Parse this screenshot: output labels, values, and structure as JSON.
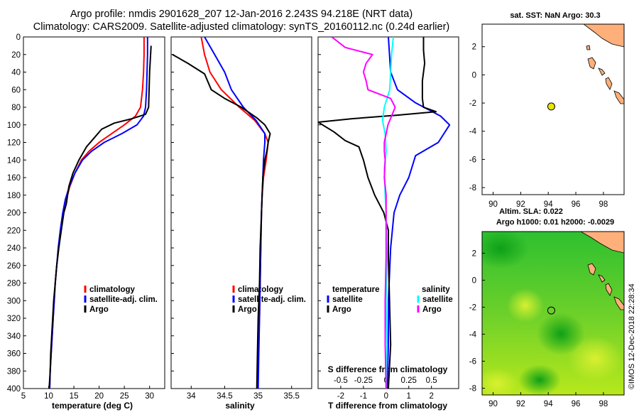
{
  "figure": {
    "title_line1": "Argo profile: nmdis 2901628_207 12-Jan-2016 2.243S 94.218E (NRT data)",
    "title_line2": "Climatology: CARS2009. Satellite-adjusted climatology: synTS_20160112.nc (0.24d earlier)",
    "stamp": "©IMOS 12-Dec-2018 22:28:34",
    "colors": {
      "climatology": "#ff0000",
      "satellite": "#0000ff",
      "argo": "#000000",
      "salinity_climatology": "#ff00ff",
      "salinity_satellite": "#00ffff",
      "land": "#ffb07a",
      "float": "#e6e600"
    }
  },
  "chart_data": [
    {
      "type": "line",
      "id": "temperature",
      "xlabel": "temperature (deg C)",
      "ylabel": "",
      "xlim": [
        5,
        33
      ],
      "ylim": [
        400,
        0
      ],
      "xticks": [
        5,
        10,
        15,
        20,
        25,
        30
      ],
      "yticks": [
        0,
        20,
        40,
        60,
        80,
        100,
        120,
        140,
        160,
        180,
        200,
        220,
        240,
        260,
        280,
        300,
        320,
        340,
        360,
        380,
        400
      ],
      "legend": [
        "climatology",
        "satellite-adj. clim.",
        "Argo"
      ],
      "series": [
        {
          "name": "climatology",
          "points": [
            [
              28.9,
              0
            ],
            [
              28.9,
              20
            ],
            [
              28.8,
              40
            ],
            [
              28.6,
              60
            ],
            [
              28.2,
              80
            ],
            [
              27.2,
              90
            ],
            [
              25,
              100
            ],
            [
              22.5,
              110
            ],
            [
              20,
              120
            ],
            [
              18,
              130
            ],
            [
              16.5,
              140
            ],
            [
              15.2,
              155
            ],
            [
              14.2,
              170
            ],
            [
              13.5,
              185
            ],
            [
              13,
              200
            ],
            [
              12.4,
              220
            ],
            [
              12,
              240
            ],
            [
              11.6,
              260
            ],
            [
              11.3,
              280
            ],
            [
              11.1,
              300
            ],
            [
              10.9,
              320
            ],
            [
              10.7,
              340
            ],
            [
              10.5,
              360
            ],
            [
              10.3,
              380
            ],
            [
              10.2,
              400
            ]
          ]
        },
        {
          "name": "satellite-adj. clim.",
          "points": [
            [
              29.6,
              0
            ],
            [
              29.6,
              20
            ],
            [
              29.5,
              40
            ],
            [
              29.4,
              60
            ],
            [
              29.2,
              80
            ],
            [
              28.8,
              90
            ],
            [
              27.5,
              100
            ],
            [
              24.5,
              110
            ],
            [
              21,
              120
            ],
            [
              18.5,
              130
            ],
            [
              16.7,
              140
            ],
            [
              15.2,
              155
            ],
            [
              14.1,
              170
            ],
            [
              13.3,
              185
            ],
            [
              12.8,
              200
            ],
            [
              12.3,
              220
            ],
            [
              11.9,
              240
            ],
            [
              11.6,
              260
            ],
            [
              11.3,
              280
            ],
            [
              11.1,
              300
            ],
            [
              10.9,
              320
            ],
            [
              10.7,
              340
            ],
            [
              10.5,
              360
            ],
            [
              10.3,
              380
            ],
            [
              10.2,
              400
            ]
          ]
        },
        {
          "name": "Argo",
          "points": [
            [
              30.3,
              10
            ],
            [
              30.2,
              20
            ],
            [
              30,
              40
            ],
            [
              29.9,
              60
            ],
            [
              29.8,
              80
            ],
            [
              29.2,
              88
            ],
            [
              26.5,
              93
            ],
            [
              23,
              98
            ],
            [
              20.5,
              105
            ],
            [
              19,
              115
            ],
            [
              17.5,
              125
            ],
            [
              16,
              140
            ],
            [
              14.8,
              155
            ],
            [
              14,
              170
            ],
            [
              13.5,
              190
            ],
            [
              13,
              200
            ],
            [
              12.5,
              220
            ],
            [
              12,
              240
            ],
            [
              11.6,
              260
            ],
            [
              11.3,
              280
            ],
            [
              11,
              300
            ],
            [
              10.8,
              320
            ],
            [
              10.6,
              340
            ],
            [
              10.4,
              360
            ],
            [
              10.3,
              380
            ],
            [
              10.1,
              400
            ]
          ]
        }
      ]
    },
    {
      "type": "line",
      "id": "salinity",
      "xlabel": "salinity",
      "ylabel": "",
      "xlim": [
        33.7,
        35.8
      ],
      "ylim": [
        400,
        0
      ],
      "xticks": [
        34,
        34.5,
        35,
        35.5
      ],
      "legend": [
        "climatology",
        "satellite-adj. clim.",
        "Argo"
      ],
      "series": [
        {
          "name": "climatology",
          "points": [
            [
              34.15,
              0
            ],
            [
              34.2,
              20
            ],
            [
              34.28,
              40
            ],
            [
              34.45,
              60
            ],
            [
              34.72,
              80
            ],
            [
              34.95,
              95
            ],
            [
              35.1,
              110
            ],
            [
              35.15,
              120
            ],
            [
              35.12,
              140
            ],
            [
              35.08,
              160
            ],
            [
              35.06,
              180
            ],
            [
              35.05,
              200
            ],
            [
              35.04,
              240
            ],
            [
              35.03,
              280
            ],
            [
              35.02,
              320
            ],
            [
              35.0,
              360
            ],
            [
              34.99,
              400
            ]
          ]
        },
        {
          "name": "satellite-adj. clim.",
          "points": [
            [
              34.2,
              0
            ],
            [
              34.35,
              20
            ],
            [
              34.5,
              40
            ],
            [
              34.6,
              60
            ],
            [
              34.78,
              80
            ],
            [
              34.97,
              95
            ],
            [
              35.1,
              110
            ],
            [
              35.1,
              120
            ],
            [
              35.08,
              140
            ],
            [
              35.07,
              160
            ],
            [
              35.06,
              180
            ],
            [
              35.05,
              200
            ],
            [
              35.04,
              240
            ],
            [
              35.03,
              280
            ],
            [
              35.02,
              320
            ],
            [
              35.01,
              360
            ],
            [
              35.0,
              400
            ]
          ]
        },
        {
          "name": "Argo",
          "points": [
            [
              33.72,
              20
            ],
            [
              33.95,
              30
            ],
            [
              34.2,
              42
            ],
            [
              34.3,
              60
            ],
            [
              34.5,
              70
            ],
            [
              34.75,
              80
            ],
            [
              34.98,
              92
            ],
            [
              35.1,
              100
            ],
            [
              35.18,
              110
            ],
            [
              35.15,
              120
            ],
            [
              35.13,
              130
            ],
            [
              35.1,
              140
            ],
            [
              35.07,
              160
            ],
            [
              35.06,
              180
            ],
            [
              35.05,
              200
            ],
            [
              35.03,
              240
            ],
            [
              35.02,
              280
            ],
            [
              35.0,
              320
            ],
            [
              34.99,
              360
            ],
            [
              34.98,
              400
            ]
          ]
        }
      ]
    },
    {
      "type": "line",
      "id": "difference",
      "xlabel": "T difference from climatology",
      "xlabel_top": "S difference from climatology",
      "xlim": [
        -3,
        3.2
      ],
      "xticks": [
        -2,
        -1,
        0,
        1,
        2
      ],
      "x2lim": [
        -0.75,
        0.8
      ],
      "x2ticks": [
        "-0.5",
        "-0.25",
        "0",
        "0.25",
        "0.5"
      ],
      "ylim": [
        400,
        0
      ],
      "legend_left_title": "temperature",
      "legend_right_title": "salinity",
      "legend": [
        "satellite",
        "Argo",
        "satellite",
        "Argo"
      ],
      "series": [
        {
          "name": "T satellite",
          "axis": "T",
          "points": [
            [
              0.1,
              0
            ],
            [
              0.2,
              40
            ],
            [
              0.5,
              60
            ],
            [
              1.3,
              75
            ],
            [
              2.4,
              90
            ],
            [
              2.8,
              100
            ],
            [
              2.3,
              120
            ],
            [
              1.3,
              135
            ],
            [
              1,
              160
            ],
            [
              0.6,
              180
            ],
            [
              0.35,
              200
            ],
            [
              0.2,
              240
            ],
            [
              0.1,
              300
            ],
            [
              0.1,
              350
            ],
            [
              0.05,
              400
            ]
          ]
        },
        {
          "name": "T Argo",
          "axis": "T",
          "points": [
            [
              1.65,
              0
            ],
            [
              1.65,
              15
            ],
            [
              1.7,
              30
            ],
            [
              1.6,
              50
            ],
            [
              1.6,
              70
            ],
            [
              1.65,
              80
            ],
            [
              2.2,
              85
            ],
            [
              0.5,
              89
            ],
            [
              -1.5,
              93
            ],
            [
              -3,
              97
            ],
            [
              -2.3,
              108
            ],
            [
              -1.8,
              118
            ],
            [
              -1.2,
              125
            ],
            [
              -1.0,
              140
            ],
            [
              -0.8,
              160
            ],
            [
              -0.5,
              180
            ],
            [
              -0.1,
              200
            ],
            [
              0.1,
              220
            ],
            [
              0.1,
              250
            ],
            [
              0.15,
              300
            ],
            [
              0.2,
              350
            ],
            [
              0.1,
              400
            ]
          ]
        },
        {
          "name": "S satellite",
          "axis": "S",
          "points": [
            [
              0.08,
              0
            ],
            [
              0.06,
              20
            ],
            [
              0.04,
              60
            ],
            [
              -0.02,
              80
            ],
            [
              -0.04,
              95
            ],
            [
              -0.01,
              110
            ],
            [
              0.0,
              130
            ],
            [
              -0.02,
              150
            ],
            [
              -0.01,
              180
            ],
            [
              0.0,
              200
            ],
            [
              0.01,
              250
            ],
            [
              0.0,
              300
            ],
            [
              0.01,
              350
            ],
            [
              0.0,
              400
            ]
          ]
        },
        {
          "name": "S Argo",
          "axis": "S",
          "points": [
            [
              -0.6,
              0
            ],
            [
              -0.45,
              12
            ],
            [
              -0.15,
              20
            ],
            [
              -0.22,
              30
            ],
            [
              -0.25,
              40
            ],
            [
              -0.22,
              50
            ],
            [
              -0.2,
              60
            ],
            [
              0.05,
              70
            ],
            [
              0.1,
              80
            ],
            [
              0.02,
              100
            ],
            [
              -0.02,
              120
            ],
            [
              -0.02,
              130
            ],
            [
              -0.01,
              140
            ],
            [
              -0.02,
              160
            ],
            [
              0.0,
              180
            ],
            [
              0.0,
              200
            ],
            [
              0.0,
              250
            ],
            [
              -0.01,
              300
            ],
            [
              -0.01,
              350
            ],
            [
              0.0,
              400
            ]
          ]
        }
      ]
    },
    {
      "type": "scatter",
      "id": "sst_map",
      "title": "sat. SST: NaN Argo: 30.3",
      "xlim": [
        89.2,
        99.5
      ],
      "ylim": [
        -8.5,
        3.6
      ],
      "xticks": [
        90,
        92,
        94,
        96,
        98
      ],
      "yticks": [
        -8,
        -6,
        -4,
        -2,
        0,
        2
      ],
      "points": [
        {
          "x": 94.218,
          "y": -2.243
        }
      ]
    },
    {
      "type": "heatmap",
      "id": "sla_map",
      "title_line1": "Altim. SLA: 0.022",
      "title_line2": "Argo h1000: 0.01 h2000: -0.0029",
      "xlim": [
        89.2,
        99.5
      ],
      "ylim": [
        -8.5,
        3.6
      ],
      "xticks": [
        90,
        92,
        94,
        96,
        98
      ],
      "yticks": [
        -8,
        -6,
        -4,
        -2,
        0,
        2
      ],
      "points": [
        {
          "x": 94.218,
          "y": -2.243
        }
      ]
    }
  ]
}
